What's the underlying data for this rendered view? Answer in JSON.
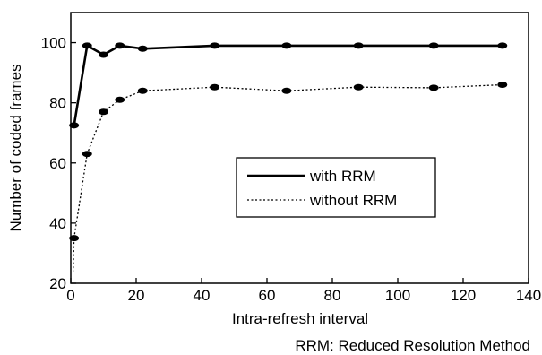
{
  "chart_data": {
    "type": "line",
    "xlabel": "Intra-refresh interval",
    "ylabel": "Number of coded frames",
    "xlim": [
      0,
      140
    ],
    "ylim": [
      20,
      110
    ],
    "xticks": [
      0,
      20,
      40,
      60,
      80,
      100,
      120,
      140
    ],
    "yticks": [
      20,
      40,
      60,
      80,
      100
    ],
    "grid": false,
    "legend_position": "center-right",
    "series": [
      {
        "name": "with RRM",
        "style": "solid",
        "color": "#000000",
        "x": [
          1,
          5,
          10,
          15,
          22,
          44,
          66,
          88,
          111,
          132
        ],
        "y": [
          72.5,
          99,
          96,
          99,
          98,
          99,
          99,
          99,
          99,
          99
        ]
      },
      {
        "name": "without RRM",
        "style": "dotted",
        "color": "#000000",
        "x": [
          1,
          5,
          10,
          15,
          22,
          44,
          66,
          88,
          111,
          132
        ],
        "y": [
          35,
          63,
          77,
          81,
          84,
          85.2,
          84,
          85.2,
          85,
          86
        ]
      }
    ],
    "footnote": "RRM: Reduced Resolution Method"
  }
}
